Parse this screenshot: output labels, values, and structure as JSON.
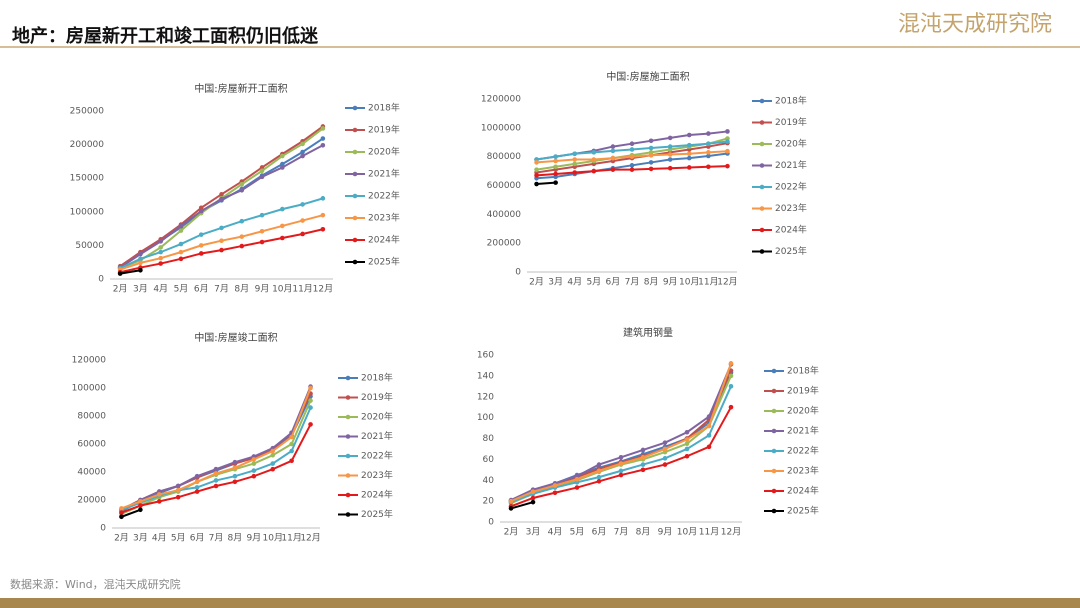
{
  "header": {
    "title": "地产：房屋新开工和竣工面积仍旧低迷",
    "logo": "混沌天成研究院"
  },
  "source": "数据来源：Wind，混沌天成研究院",
  "chart_data": [
    {
      "type": "line",
      "title": "中国:房屋新开工面积",
      "categories": [
        "2月",
        "3月",
        "4月",
        "5月",
        "6月",
        "7月",
        "8月",
        "9月",
        "10月",
        "11月",
        "12月"
      ],
      "ylim": [
        0,
        250000
      ],
      "yticks": [
        0,
        50000,
        100000,
        150000,
        200000,
        250000
      ],
      "grid": false,
      "legend": "right",
      "series": [
        {
          "name": "2018年",
          "color": "#4a7ebb",
          "values": [
            17000,
            38000,
            57000,
            77000,
            100000,
            117000,
            134000,
            154000,
            171000,
            189000,
            209000
          ]
        },
        {
          "name": "2019年",
          "color": "#c0504d",
          "values": [
            19000,
            40000,
            59000,
            81000,
            106000,
            126000,
            145000,
            166000,
            186000,
            205000,
            227000
          ]
        },
        {
          "name": "2020年",
          "color": "#9bbb59",
          "values": [
            16000,
            28000,
            47000,
            72000,
            98000,
            120000,
            141000,
            161000,
            183000,
            201000,
            224000
          ]
        },
        {
          "name": "2021年",
          "color": "#8064a2",
          "values": [
            17000,
            37000,
            56000,
            79000,
            101000,
            119000,
            132000,
            152000,
            166000,
            183000,
            199000
          ]
        },
        {
          "name": "2022年",
          "color": "#4bacc6",
          "values": [
            16000,
            30000,
            40000,
            52000,
            66000,
            76000,
            86000,
            95000,
            104000,
            111000,
            120000
          ]
        },
        {
          "name": "2023年",
          "color": "#f79646",
          "values": [
            14000,
            24000,
            31000,
            40000,
            50000,
            57000,
            63000,
            71000,
            79000,
            87000,
            95000
          ]
        },
        {
          "name": "2024年",
          "color": "#e31a1c",
          "values": [
            10000,
            17000,
            23000,
            30000,
            38000,
            43000,
            49000,
            55000,
            61000,
            67000,
            74000
          ]
        },
        {
          "name": "2025年",
          "color": "#000000",
          "values": [
            8000,
            13000,
            null,
            null,
            null,
            null,
            null,
            null,
            null,
            null,
            null
          ]
        }
      ]
    },
    {
      "type": "line",
      "title": "中国:房屋施工面积",
      "categories": [
        "2月",
        "3月",
        "4月",
        "5月",
        "6月",
        "7月",
        "8月",
        "9月",
        "10月",
        "11月",
        "12月"
      ],
      "ylim": [
        0,
        1200000
      ],
      "yticks": [
        0,
        200000,
        400000,
        600000,
        800000,
        1000000,
        1200000
      ],
      "grid": false,
      "legend": "right",
      "series": [
        {
          "name": "2018年",
          "color": "#4a7ebb",
          "values": [
            650000,
            660000,
            680000,
            700000,
            720000,
            740000,
            760000,
            780000,
            790000,
            805000,
            822000
          ]
        },
        {
          "name": "2019年",
          "color": "#c0504d",
          "values": [
            690000,
            710000,
            730000,
            750000,
            770000,
            790000,
            810000,
            830000,
            850000,
            870000,
            894000
          ]
        },
        {
          "name": "2020年",
          "color": "#9bbb59",
          "values": [
            710000,
            730000,
            750000,
            770000,
            790000,
            810000,
            830000,
            850000,
            870000,
            890000,
            926000
          ]
        },
        {
          "name": "2021年",
          "color": "#8064a2",
          "values": [
            780000,
            800000,
            820000,
            840000,
            870000,
            890000,
            910000,
            930000,
            950000,
            960000,
            975000
          ]
        },
        {
          "name": "2022年",
          "color": "#4bacc6",
          "values": [
            780000,
            800000,
            820000,
            830000,
            840000,
            850000,
            860000,
            870000,
            880000,
            890000,
            905000
          ]
        },
        {
          "name": "2023年",
          "color": "#f79646",
          "values": [
            760000,
            770000,
            780000,
            780000,
            790000,
            800000,
            810000,
            815000,
            820000,
            830000,
            838000
          ]
        },
        {
          "name": "2024年",
          "color": "#e31a1c",
          "values": [
            670000,
            680000,
            690000,
            700000,
            710000,
            710000,
            715000,
            720000,
            725000,
            730000,
            734000
          ]
        },
        {
          "name": "2025年",
          "color": "#000000",
          "values": [
            610000,
            620000,
            null,
            null,
            null,
            null,
            null,
            null,
            null,
            null,
            null
          ]
        }
      ]
    },
    {
      "type": "line",
      "title": "中国:房屋竣工面积",
      "categories": [
        "2月",
        "3月",
        "4月",
        "5月",
        "6月",
        "7月",
        "8月",
        "9月",
        "10月",
        "11月",
        "12月"
      ],
      "ylim": [
        0,
        120000
      ],
      "yticks": [
        0,
        20000,
        40000,
        60000,
        80000,
        100000,
        120000
      ],
      "grid": false,
      "legend": "right",
      "series": [
        {
          "name": "2018年",
          "color": "#4a7ebb",
          "values": [
            12000,
            19000,
            25000,
            30000,
            36000,
            41000,
            46000,
            51000,
            56000,
            66000,
            94000
          ]
        },
        {
          "name": "2019年",
          "color": "#c0504d",
          "values": [
            13000,
            20000,
            26000,
            30000,
            36000,
            42000,
            46000,
            50000,
            56000,
            68000,
            96000
          ]
        },
        {
          "name": "2020年",
          "color": "#9bbb59",
          "values": [
            10000,
            16000,
            22000,
            26000,
            33000,
            38000,
            42000,
            46000,
            52000,
            60000,
            91000
          ]
        },
        {
          "name": "2021年",
          "color": "#8064a2",
          "values": [
            13000,
            20000,
            26000,
            30000,
            37000,
            42000,
            47000,
            51000,
            57000,
            68000,
            101000
          ]
        },
        {
          "name": "2022年",
          "color": "#4bacc6",
          "values": [
            13000,
            18000,
            23000,
            27000,
            29000,
            34000,
            37000,
            41000,
            46000,
            55000,
            86000
          ]
        },
        {
          "name": "2023年",
          "color": "#f79646",
          "values": [
            14000,
            19000,
            24000,
            27000,
            33000,
            39000,
            43000,
            49000,
            55000,
            65000,
            100000
          ]
        },
        {
          "name": "2024年",
          "color": "#e31a1c",
          "values": [
            11000,
            16000,
            19000,
            22000,
            26000,
            30000,
            33000,
            37000,
            42000,
            48000,
            74000
          ]
        },
        {
          "name": "2025年",
          "color": "#000000",
          "values": [
            8000,
            13000,
            null,
            null,
            null,
            null,
            null,
            null,
            null,
            null,
            null
          ]
        }
      ]
    },
    {
      "type": "line",
      "title": "建筑用钢量",
      "categories": [
        "2月",
        "3月",
        "4月",
        "5月",
        "6月",
        "7月",
        "8月",
        "9月",
        "10月",
        "11月",
        "12月"
      ],
      "ylim": [
        0,
        160
      ],
      "yticks": [
        0,
        20,
        40,
        60,
        80,
        100,
        120,
        140,
        160
      ],
      "grid": false,
      "legend": "right",
      "series": [
        {
          "name": "2018年",
          "color": "#4a7ebb",
          "values": [
            20,
            30,
            37,
            45,
            52,
            58,
            65,
            72,
            80,
            95,
            143
          ]
        },
        {
          "name": "2019年",
          "color": "#c0504d",
          "values": [
            20,
            29,
            35,
            43,
            51,
            57,
            63,
            70,
            80,
            98,
            145
          ]
        },
        {
          "name": "2020年",
          "color": "#9bbb59",
          "values": [
            18,
            27,
            33,
            40,
            48,
            55,
            60,
            67,
            75,
            92,
            140
          ]
        },
        {
          "name": "2021年",
          "color": "#8064a2",
          "values": [
            21,
            31,
            37,
            44,
            55,
            62,
            69,
            76,
            86,
            101,
            151
          ]
        },
        {
          "name": "2022年",
          "color": "#4bacc6",
          "values": [
            19,
            27,
            33,
            38,
            43,
            49,
            55,
            61,
            70,
            83,
            130
          ]
        },
        {
          "name": "2023年",
          "color": "#f79646",
          "values": [
            20,
            29,
            35,
            41,
            49,
            56,
            62,
            70,
            79,
            92,
            152
          ]
        },
        {
          "name": "2024年",
          "color": "#e31a1c",
          "values": [
            15,
            23,
            28,
            33,
            39,
            45,
            50,
            55,
            63,
            72,
            110
          ]
        },
        {
          "name": "2025年",
          "color": "#000000",
          "values": [
            13,
            19,
            null,
            null,
            null,
            null,
            null,
            null,
            null,
            null,
            null
          ]
        }
      ]
    }
  ]
}
